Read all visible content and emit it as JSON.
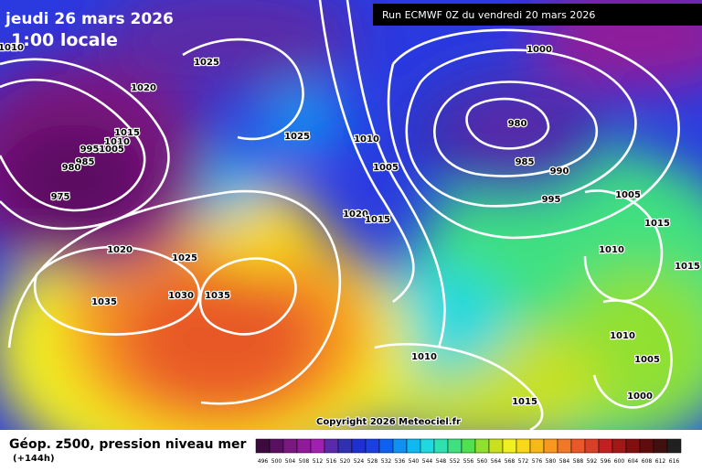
{
  "header": {
    "date": "jeudi 26 mars 2026",
    "time": "1:00 locale",
    "run": "Run ECMWF 0Z du vendredi 20 mars 2026"
  },
  "isobar_labels": [
    1010,
    1025,
    1020,
    1015,
    1010,
    1005,
    995,
    985,
    980,
    975,
    1025,
    1010,
    1005,
    1000,
    980,
    985,
    990,
    995,
    1005,
    1015,
    1010,
    1015,
    1020,
    1025,
    1020,
    1015,
    1035,
    1030,
    1035,
    1010,
    1010,
    1005,
    1015,
    1000
  ],
  "footer": {
    "title": "Géop. z500, pression niveau mer",
    "hour": "(+144h)",
    "copyright": "Copyright 2026 Meteociel.fr"
  },
  "scale": {
    "labels": [
      496,
      500,
      504,
      508,
      512,
      516,
      520,
      524,
      528,
      532,
      536,
      540,
      544,
      548,
      552,
      556,
      560,
      564,
      568,
      572,
      576,
      580,
      584,
      588,
      592,
      596,
      600,
      604,
      608,
      612,
      616
    ],
    "colors": [
      "#3c0a3c",
      "#5a1060",
      "#7a1880",
      "#901a9a",
      "#a020b0",
      "#5a2aa8",
      "#3030b0",
      "#2030d0",
      "#1a40e0",
      "#1060f0",
      "#1090f0",
      "#10b8f0",
      "#20d8e0",
      "#30e0b0",
      "#40e080",
      "#50e050",
      "#90e030",
      "#c8e020",
      "#f0f020",
      "#f8d818",
      "#f8b818",
      "#f89820",
      "#f07828",
      "#e85828",
      "#d84028",
      "#c02020",
      "#a01818",
      "#801010",
      "#600c0c",
      "#401010",
      "#202020"
    ]
  }
}
